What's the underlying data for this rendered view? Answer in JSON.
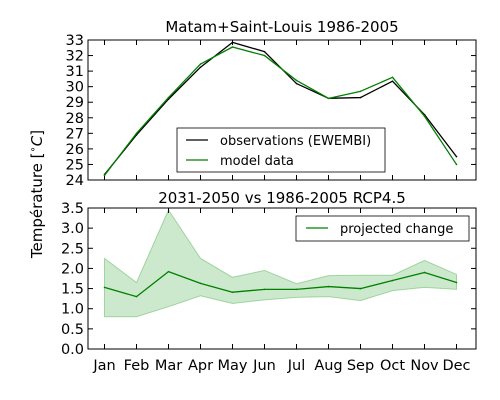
{
  "ylabel": "Température [$^\\circ C$]",
  "chart_data": [
    {
      "type": "line",
      "title": "Matam+Saint-Louis 1986-2005",
      "categories": [
        "Jan",
        "Feb",
        "Mar",
        "Apr",
        "May",
        "Jun",
        "Jul",
        "Aug",
        "Sep",
        "Oct",
        "Nov",
        "Dec"
      ],
      "ylim": [
        24,
        33
      ],
      "yticks": [
        "24",
        "25",
        "26",
        "27",
        "28",
        "29",
        "30",
        "31",
        "32",
        "33"
      ],
      "legend_position": "lower center",
      "series": [
        {
          "name": "observations (EWEMBI)",
          "color": "#000000",
          "values": [
            24.35,
            26.9,
            29.2,
            31.25,
            32.85,
            32.25,
            30.2,
            29.25,
            29.3,
            30.35,
            28.2,
            25.5
          ]
        },
        {
          "name": "model data",
          "color": "#008000",
          "values": [
            24.3,
            27.0,
            29.3,
            31.45,
            32.55,
            32.0,
            30.4,
            29.25,
            29.7,
            30.6,
            28.1,
            25.0
          ]
        }
      ]
    },
    {
      "type": "area",
      "title": "2031-2050 vs 1986-2005 RCP4.5",
      "categories": [
        "Jan",
        "Feb",
        "Mar",
        "Apr",
        "May",
        "Jun",
        "Jul",
        "Aug",
        "Sep",
        "Oct",
        "Nov",
        "Dec"
      ],
      "ylim": [
        0,
        3.5
      ],
      "yticks": [
        "0.0",
        "0.5",
        "1.0",
        "1.5",
        "2.0",
        "2.5",
        "3.0",
        "3.5"
      ],
      "legend_position": "upper right",
      "series": [
        {
          "name": "projected change",
          "color": "#008000",
          "values": [
            1.53,
            1.3,
            1.92,
            1.63,
            1.41,
            1.48,
            1.48,
            1.55,
            1.5,
            1.7,
            1.9,
            1.65
          ]
        }
      ],
      "band": {
        "color": "#4cb04c",
        "upper": [
          2.25,
          1.65,
          3.45,
          2.25,
          1.78,
          1.95,
          1.62,
          1.82,
          1.83,
          1.83,
          2.2,
          1.85
        ],
        "lower": [
          0.8,
          0.8,
          1.05,
          1.32,
          1.13,
          1.22,
          1.28,
          1.3,
          1.2,
          1.45,
          1.53,
          1.48
        ]
      }
    }
  ]
}
